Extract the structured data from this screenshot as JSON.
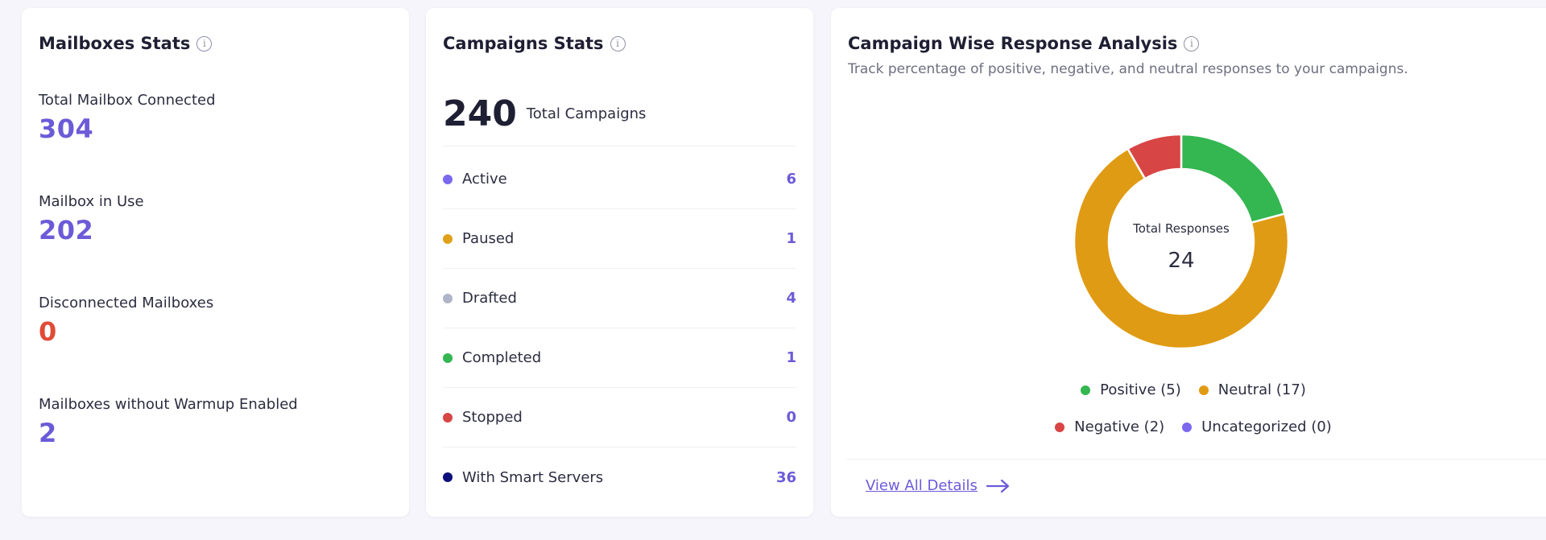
{
  "mailboxes": {
    "title": "Mailboxes Stats",
    "stats": [
      {
        "label": "Total Mailbox Connected",
        "value": "304",
        "color": "#6b5bd8"
      },
      {
        "label": "Mailbox in Use",
        "value": "202",
        "color": "#6b5bd8"
      },
      {
        "label": "Disconnected Mailboxes",
        "value": "0",
        "color": "#e04b35"
      },
      {
        "label": "Mailboxes without Warmup Enabled",
        "value": "2",
        "color": "#6b5bd8"
      }
    ]
  },
  "campaigns": {
    "title": "Campaigns Stats",
    "total_value": "240",
    "total_label": "Total Campaigns",
    "statuses": [
      {
        "label": "Active",
        "count": "6",
        "color": "#7b68ee"
      },
      {
        "label": "Paused",
        "count": "1",
        "color": "#e0a11a"
      },
      {
        "label": "Drafted",
        "count": "4",
        "color": "#b0b4c8"
      },
      {
        "label": "Completed",
        "count": "1",
        "color": "#34b650"
      },
      {
        "label": "Stopped",
        "count": "0",
        "color": "#d84545"
      },
      {
        "label": "With Smart Servers",
        "count": "36",
        "color": "#0d0f7a"
      }
    ]
  },
  "response": {
    "title": "Campaign Wise Response Analysis",
    "subtitle": "Track percentage of positive, negative, and neutral responses to your campaigns.",
    "center_label": "Total Responses",
    "center_value": "24",
    "legend": [
      {
        "label": "Positive (5)",
        "color": "#34b650"
      },
      {
        "label": "Neutral (17)",
        "color": "#e09b14"
      },
      {
        "label": "Negative (2)",
        "color": "#d84545"
      },
      {
        "label": "Uncategorized (0)",
        "color": "#7b68ee"
      }
    ],
    "view_all": "View All Details"
  },
  "chart_data": {
    "type": "pie",
    "categories": [
      "Positive",
      "Neutral",
      "Negative",
      "Uncategorized"
    ],
    "values": [
      5,
      17,
      2,
      0
    ],
    "colors": [
      "#34b650",
      "#e09b14",
      "#d84545",
      "#7b68ee"
    ],
    "title": "",
    "center_label": "Total Responses",
    "center_value": 24,
    "legend_position": "bottom"
  }
}
